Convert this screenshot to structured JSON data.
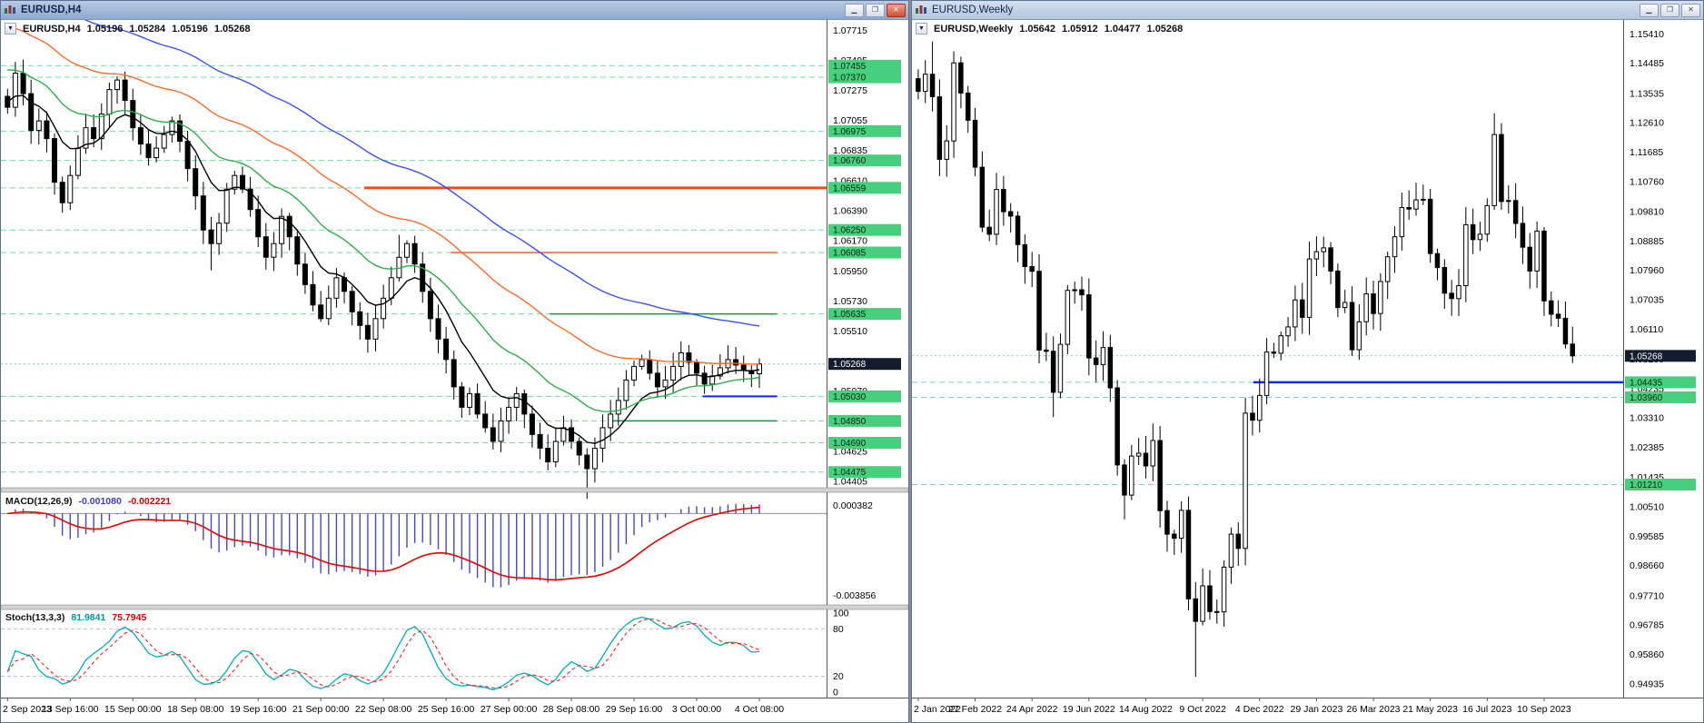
{
  "app": {
    "background": "#8e8e8e"
  },
  "windows": {
    "h4": {
      "title": "EURUSD,H4",
      "buttons": {
        "minimize": "▁",
        "restore": "❐",
        "close": "✕"
      },
      "header": {
        "dropdown_icon": "▼",
        "symbol": "EURUSD,H4",
        "open": "1.05196",
        "high": "1.05284",
        "low": "1.05196",
        "close": "1.05268"
      },
      "macd_label": {
        "name": "MACD(12,26,9)",
        "value_main": "-0.001080",
        "value_signal": "-0.002221"
      },
      "stoch_label": {
        "name": "Stoch(13,3,3)",
        "value_k": "81.9841",
        "value_d": "75.7945"
      }
    },
    "weekly": {
      "title": "EURUSD,Weekly",
      "buttons": {
        "minimize": "▁",
        "restore": "❐",
        "close": "✕"
      },
      "header": {
        "dropdown_icon": "▼",
        "symbol": "EURUSD,Weekly",
        "open": "1.05642",
        "high": "1.05912",
        "low": "1.04477",
        "close": "1.05268"
      }
    }
  },
  "chart_data": {
    "h4": {
      "type": "candlestick",
      "symbol": "EURUSD",
      "timeframe": "H4",
      "plot_range": [
        1.0436,
        1.0779
      ],
      "closes": [
        1.0715,
        1.074,
        1.0725,
        1.0698,
        1.0705,
        1.0692,
        1.066,
        1.0645,
        1.0665,
        1.0685,
        1.07,
        1.0692,
        1.071,
        1.0728,
        1.0735,
        1.072,
        1.07,
        1.0688,
        1.0678,
        1.0685,
        1.0695,
        1.0705,
        1.069,
        1.067,
        1.065,
        1.0625,
        1.0615,
        1.063,
        1.0655,
        1.0665,
        1.0655,
        1.064,
        1.062,
        1.0605,
        1.0615,
        1.0635,
        1.062,
        1.06,
        1.0585,
        1.057,
        1.056,
        1.0575,
        1.059,
        1.058,
        1.0565,
        1.0555,
        1.0545,
        1.056,
        1.0575,
        1.059,
        1.0605,
        1.0615,
        1.06,
        1.058,
        1.056,
        1.0545,
        1.053,
        1.051,
        1.0495,
        1.0505,
        1.049,
        1.048,
        1.047,
        1.0485,
        1.0495,
        1.0505,
        1.049,
        1.0475,
        1.0465,
        1.0455,
        1.047,
        1.048,
        1.047,
        1.046,
        1.045,
        1.0465,
        1.048,
        1.049,
        1.05,
        1.0515,
        1.0525,
        1.053,
        1.052,
        1.051,
        1.0515,
        1.0525,
        1.0535,
        1.0528,
        1.052,
        1.0512,
        1.0518,
        1.0524,
        1.053,
        1.0526,
        1.0522,
        1.05196,
        1.05268
      ],
      "wick_base": 0.0009,
      "open_offset": 0.0008,
      "span_frac": 0.92,
      "spikes": {
        "50": 0.0011,
        "74": -0.0013,
        "26": -0.001
      },
      "price_ticks": [
        "1.07715",
        "1.07495",
        "1.07275",
        "1.07055",
        "1.06835",
        "1.06610",
        "1.06390",
        "1.06170",
        "1.05950",
        "1.05730",
        "1.05510",
        "1.05290",
        "1.05070",
        "1.04845",
        "1.04625",
        "1.04405"
      ],
      "badges": [
        {
          "label": "1.07455",
          "price": 1.07455
        },
        {
          "label": "1.07370",
          "price": 1.0737
        },
        {
          "label": "1.06975",
          "price": 1.06975
        },
        {
          "label": "1.06760",
          "price": 1.0676
        },
        {
          "label": "1.06559",
          "price": 1.06559
        },
        {
          "label": "1.06250",
          "price": 1.0625
        },
        {
          "label": "1.06085",
          "price": 1.06085
        },
        {
          "label": "1.05635",
          "price": 1.05635
        },
        {
          "label": "1.05030",
          "price": 1.0503
        },
        {
          "label": "1.04850",
          "price": 1.0485
        },
        {
          "label": "1.04690",
          "price": 1.0469
        },
        {
          "label": "1.04475",
          "price": 1.04475
        }
      ],
      "bid": {
        "label": "1.05268",
        "price": 1.05268
      },
      "lines": [
        {
          "price": 1.06559,
          "color": "#ff4a00",
          "width": 3,
          "x1": 0.44,
          "x2": 1.0
        },
        {
          "price": 1.06085,
          "color": "#ff3c00",
          "width": 1.2,
          "x1": 0.545,
          "x2": 0.94
        },
        {
          "price": 1.05635,
          "color": "#009e3c",
          "width": 1.5,
          "x1": 0.665,
          "x2": 0.94
        },
        {
          "price": 1.0485,
          "color": "#009e3c",
          "width": 1.5,
          "x1": 0.74,
          "x2": 0.94
        },
        {
          "price": 1.0503,
          "color": "#0a28ff",
          "width": 2,
          "x1": 0.85,
          "x2": 0.94
        }
      ],
      "mas": [
        {
          "period": 9,
          "seed_offset": 0.0005,
          "color": "#000000"
        },
        {
          "period": 22,
          "seed_offset": 0.003,
          "color": "#2fae4e"
        },
        {
          "period": 45,
          "seed_offset": 0.0062,
          "color": "#ff6a2a"
        },
        {
          "period": 72,
          "seed_offset": 0.0095,
          "color": "#3c50ff"
        }
      ],
      "time_labels": [
        "2 Sep 2023",
        "13 Sep 16:00",
        "15 Sep 00:00",
        "18 Sep 08:00",
        "19 Sep 16:00",
        "21 Sep 00:00",
        "22 Sep 08:00",
        "25 Sep 16:00",
        "27 Sep 00:00",
        "28 Sep 08:00",
        "29 Sep 16:00",
        "3 Oct 00:00",
        "4 Oct 08:00"
      ],
      "label_step": 8,
      "macd": {
        "fast": 12,
        "slow": 26,
        "signal": 9,
        "range": [
          -0.0043,
          0.001
        ],
        "axis_labels": [
          "0.000382",
          "-0.003856"
        ],
        "hist_color": "#4646cf",
        "signal_color": "#e80000"
      },
      "stoch": {
        "k": 13,
        "slowing": 3,
        "d": 3,
        "levels": [
          80,
          20
        ],
        "axis_labels": [
          "100",
          "80",
          "20",
          "0"
        ],
        "k_color": "#00b0b8",
        "d_color": "#ff2222"
      }
    },
    "weekly": {
      "type": "candlestick",
      "symbol": "EURUSD",
      "timeframe": "Weekly",
      "plot_range": [
        0.945,
        1.1585
      ],
      "closes": [
        1.136,
        1.1414,
        1.1343,
        1.1146,
        1.1204,
        1.145,
        1.1355,
        1.1269,
        1.1121,
        1.0932,
        1.091,
        1.1051,
        1.0981,
        1.0967,
        1.0877,
        1.0808,
        1.0793,
        1.0545,
        1.0541,
        1.0412,
        1.0563,
        1.0733,
        1.0735,
        1.0719,
        1.052,
        1.0499,
        1.0553,
        1.0426,
        1.0183,
        1.0088,
        1.0211,
        1.022,
        1.018,
        1.026,
        1.0039,
        0.9965,
        0.9952,
        1.004,
        0.9761,
        0.969,
        0.9802,
        0.9721,
        0.972,
        0.9861,
        0.9965,
        0.992,
        1.0346,
        1.0324,
        1.0402,
        1.0539,
        1.0535,
        1.059,
        1.0618,
        1.0703,
        1.0648,
        1.0832,
        1.0855,
        1.0867,
        1.0794,
        1.0679,
        1.0695,
        1.0546,
        1.0634,
        1.0722,
        1.066,
        1.0761,
        1.0839,
        1.0902,
        1.0994,
        1.0989,
        1.1018,
        1.102,
        1.0849,
        1.0805,
        1.0724,
        1.0707,
        1.0748,
        1.094,
        1.0893,
        1.091,
        1.1,
        1.1224,
        1.1013,
        1.1016,
        1.0944,
        1.0869,
        1.0794,
        1.092,
        1.07,
        1.0658,
        1.0645,
        1.0564,
        1.05268
      ],
      "wick_base": 0.0048,
      "open_offset": 0.004,
      "span_frac": 0.93,
      "spikes": {
        "39": -0.015,
        "19": -0.006,
        "81": 0.0048,
        "2": 0.005,
        "29": -0.0055
      },
      "price_ticks": [
        "1.15410",
        "1.14485",
        "1.13535",
        "1.12610",
        "1.11685",
        "1.10760",
        "1.09810",
        "1.08885",
        "1.07960",
        "1.07035",
        "1.06110",
        "1.05160",
        "1.04235",
        "1.03310",
        "1.02385",
        "1.01435",
        "1.00510",
        "0.99585",
        "0.98660",
        "0.97710",
        "0.96785",
        "0.95860",
        "0.94935"
      ],
      "badges": [
        {
          "label": "1.04435",
          "price": 1.04435
        },
        {
          "label": "1.03960",
          "price": 1.0396
        },
        {
          "label": "1.01210",
          "price": 1.0121
        }
      ],
      "bid": {
        "label": "1.05268",
        "price": 1.05268
      },
      "lines": [
        {
          "price": 1.04435,
          "color": "#0a28ff",
          "width": 2.5,
          "x1": 0.48,
          "x2": 1.0
        }
      ],
      "mas": [],
      "time_labels": [
        "2 Jan 2022",
        "27 Feb 2022",
        "24 Apr 2022",
        "19 Jun 2022",
        "14 Aug 2022",
        "9 Oct 2022",
        "4 Dec 2022",
        "29 Jan 2023",
        "26 Mar 2023",
        "21 May 2023",
        "16 Jul 2023",
        "10 Sep 2023"
      ],
      "label_step": 8
    }
  },
  "colors": {
    "level_dash": "#79d9a2",
    "badge_green": "#46cf7d",
    "badge_text": "#06240f",
    "bid_badge": "#141d2e",
    "bid_badge_text": "#ffffff",
    "axis_line": "#555555",
    "candle_up": "#ffffff",
    "candle_down": "#000000",
    "candle_border": "#000000",
    "separator_fill": "#d2d2d2",
    "separator_edge": "#8a8a8a"
  }
}
